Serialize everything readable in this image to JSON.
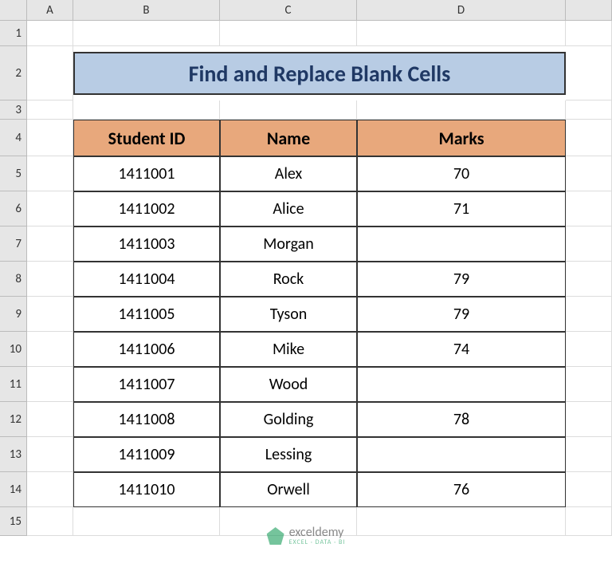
{
  "colors": {
    "title_bg": "#b8cce4",
    "title_text": "#1f3864",
    "header_bg": "#e8a87c",
    "grid_line": "#dcdcdc",
    "hdr_bg": "#e6e6e6"
  },
  "column_headers": [
    "A",
    "B",
    "C",
    "D"
  ],
  "row_headers": [
    "1",
    "2",
    "3",
    "4",
    "5",
    "6",
    "7",
    "8",
    "9",
    "10",
    "11",
    "12",
    "13",
    "14",
    "15"
  ],
  "title": "Find and Replace Blank Cells",
  "table": {
    "columns": [
      "Student ID",
      "Name",
      "Marks"
    ],
    "rows": [
      [
        "1411001",
        "Alex",
        "70"
      ],
      [
        "1411002",
        "Alice",
        "71"
      ],
      [
        "1411003",
        "Morgan",
        ""
      ],
      [
        "1411004",
        "Rock",
        "79"
      ],
      [
        "1411005",
        "Tyson",
        "79"
      ],
      [
        "1411006",
        "Mike",
        "74"
      ],
      [
        "1411007",
        "Wood",
        ""
      ],
      [
        "1411008",
        "Golding",
        "78"
      ],
      [
        "1411009",
        "Lessing",
        ""
      ],
      [
        "1411010",
        "Orwell",
        "76"
      ]
    ]
  },
  "watermark": {
    "brand": "exceldemy",
    "tag": "EXCEL · DATA · BI"
  }
}
